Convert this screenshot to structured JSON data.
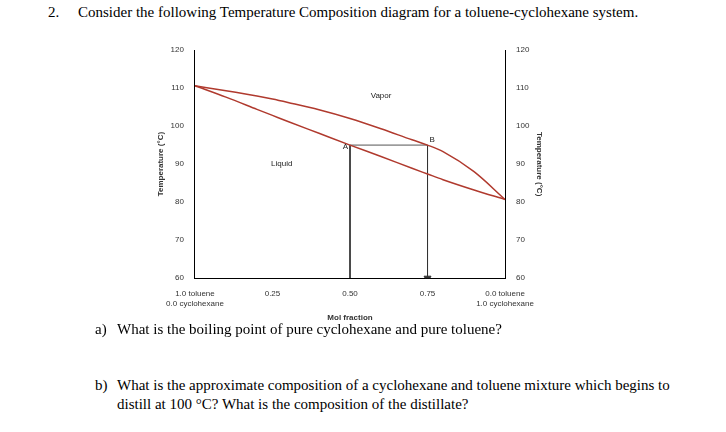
{
  "header": {
    "number": "2.",
    "text": "Consider the following Temperature Composition diagram for a toluene-cyclohexane system."
  },
  "questions": [
    {
      "label": "a)",
      "text": "What is the boiling point of pure cyclohexane and pure toluene?"
    },
    {
      "label": "b)",
      "text": "What is the approximate composition of a cyclohexane and toluene mixture which begins to distill at 100 °C? What is the composition of the distillate?"
    }
  ],
  "chart_data": {
    "type": "line",
    "x_label": "Mol fraction",
    "y_label": "Temperature (°C)",
    "y2_label": "Temperature (°C)",
    "xlim": [
      0,
      1
    ],
    "xticks": [
      {
        "value": 0,
        "label": "1.0 toluene\n0.0 cyclohexane"
      },
      {
        "value": 0.25,
        "label": "0.25"
      },
      {
        "value": 0.5,
        "label": "0.50"
      },
      {
        "value": 0.75,
        "label": "0.75"
      },
      {
        "value": 1,
        "label": "0.0 toluene\n1.0 cyclohexane"
      }
    ],
    "ylim": [
      60,
      120
    ],
    "yticks": [
      60,
      70,
      80,
      90,
      100,
      110,
      120
    ],
    "y2lim": [
      60,
      120
    ],
    "y2ticks": [
      60,
      70,
      80,
      90,
      100,
      110,
      120
    ],
    "grid": false,
    "series": [
      {
        "color": "#b03a2e",
        "x": [
          0,
          0.1,
          0.2,
          0.25,
          0.3,
          0.4,
          0.5,
          0.6,
          0.7,
          0.75,
          0.8,
          0.9,
          1.0
        ],
        "values": [
          110.6,
          109.3,
          107.9,
          107.1,
          106.2,
          104.3,
          102.0,
          99.3,
          96.4,
          95.0,
          93.3,
          88.0,
          80.7
        ]
      },
      {
        "color": "#b03a2e",
        "x": [
          0,
          0.1,
          0.2,
          0.25,
          0.3,
          0.4,
          0.5,
          0.6,
          0.7,
          0.75,
          0.8,
          0.9,
          1.0
        ],
        "values": [
          110.6,
          107.6,
          104.4,
          102.8,
          101.2,
          98.1,
          95.0,
          92.0,
          88.9,
          87.4,
          85.9,
          83.2,
          80.7
        ]
      }
    ],
    "points": [
      {
        "label": "A",
        "x": 0.5,
        "y": 95
      },
      {
        "label": "B",
        "x": 0.75,
        "y": 95
      }
    ],
    "annotations": [
      {
        "text": "Vapor",
        "x": 0.6,
        "y": 107.4
      },
      {
        "text": "Liquid",
        "x": 0.28,
        "y": 89.6
      }
    ]
  }
}
